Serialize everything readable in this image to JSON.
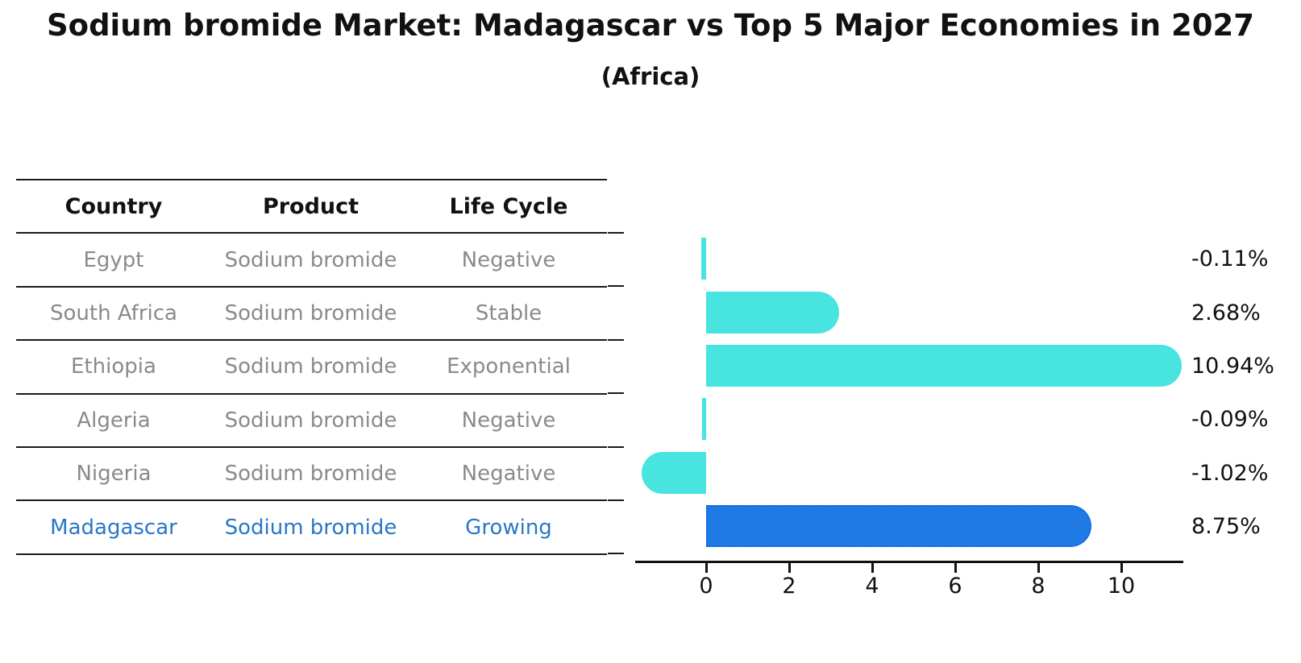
{
  "title": "Sodium bromide Market: Madagascar vs Top 5 Major Economies in 2027",
  "subtitle": "(Africa)",
  "table": {
    "headers": [
      "Country",
      "Product",
      "Life Cycle"
    ],
    "rows": [
      {
        "country": "Egypt",
        "product": "Sodium bromide",
        "life_cycle": "Negative",
        "highlight": false
      },
      {
        "country": "South Africa",
        "product": "Sodium bromide",
        "life_cycle": "Stable",
        "highlight": false
      },
      {
        "country": "Ethiopia",
        "product": "Sodium bromide",
        "life_cycle": "Exponential",
        "highlight": false
      },
      {
        "country": "Algeria",
        "product": "Sodium bromide",
        "life_cycle": "Negative",
        "highlight": false
      },
      {
        "country": "Nigeria",
        "product": "Sodium bromide",
        "life_cycle": "Negative",
        "highlight": false
      },
      {
        "country": "Madagascar",
        "product": "Sodium bromide",
        "life_cycle": "Growing",
        "highlight": true
      }
    ]
  },
  "chart_data": {
    "type": "bar",
    "orientation": "horizontal",
    "title": "Sodium bromide Market: Madagascar vs Top 5 Major Economies in 2027",
    "subtitle": "(Africa)",
    "categories": [
      "Egypt",
      "South Africa",
      "Ethiopia",
      "Algeria",
      "Nigeria",
      "Madagascar"
    ],
    "values": [
      -0.11,
      2.68,
      10.94,
      -0.09,
      -1.02,
      8.75
    ],
    "value_labels": [
      "-0.11%",
      "2.68%",
      "10.94%",
      "-0.09%",
      "-1.02%",
      "8.75%"
    ],
    "units": "%",
    "x_ticks": [
      0,
      2,
      4,
      6,
      8,
      10
    ],
    "xlim": [
      -1.67,
      11.5
    ],
    "grid": false,
    "legend": "none",
    "highlight_index": 5,
    "highlight_category": "Madagascar"
  },
  "colors": {
    "bar_default": "#47E4E0",
    "bar_highlight": "#1F7AE6",
    "bar_highlight_border": "#1565D8",
    "text_gray": "#8a8a8a",
    "text_highlight": "#2878C8",
    "text_black": "#111111",
    "line_black": "#1a1a1a"
  }
}
